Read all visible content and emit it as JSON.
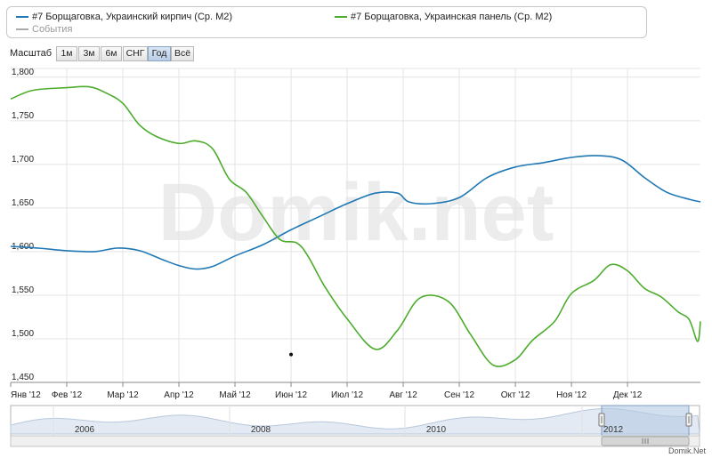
{
  "legend": {
    "series1_label": "#7 Борщаговка, Украинский кирпич (Ср. М2)",
    "series2_label": "#7 Борщаговка, Украинская панель (Ср. М2)",
    "events_label": "События"
  },
  "zoom": {
    "label": "Масштаб",
    "buttons": [
      "1м",
      "3м",
      "6м",
      "СНГ",
      "Год",
      "Всё"
    ],
    "active": "Год"
  },
  "colors": {
    "series1": "#1f78b4",
    "series2": "#4cac2c",
    "events": "#aaaaaa",
    "grid": "#e4e4e4"
  },
  "watermark": "Domik.net",
  "footer": "Domik.Net",
  "navigator": {
    "years": [
      "2006",
      "2008",
      "2010",
      "2012"
    ]
  },
  "chart_data": {
    "type": "line",
    "x_ticks": [
      "Янв '12",
      "Фев '12",
      "Мар '12",
      "Апр '12",
      "Май '12",
      "Июн '12",
      "Июл '12",
      "Авг '12",
      "Сен '12",
      "Окт '12",
      "Ноя '12",
      "Дек '12"
    ],
    "y_ticks": [
      "1,800",
      "1,750",
      "1,700",
      "1,650",
      "1,600",
      "1,550",
      "1,500",
      "1,450"
    ],
    "ylim": [
      1450,
      1810
    ],
    "xlim": [
      0,
      12.3
    ],
    "grid": true,
    "legend_position": "top",
    "series": [
      {
        "name": "#7 Борщаговка, Украинский кирпич (Ср. М2)",
        "color": "#1f78b4",
        "points": [
          [
            0,
            1606
          ],
          [
            0.5,
            1604
          ],
          [
            1,
            1601
          ],
          [
            1.5,
            1600
          ],
          [
            1.9,
            1604
          ],
          [
            2.3,
            1601
          ],
          [
            2.7,
            1591
          ],
          [
            3,
            1584
          ],
          [
            3.3,
            1580
          ],
          [
            3.6,
            1583
          ],
          [
            4,
            1595
          ],
          [
            4.5,
            1608
          ],
          [
            5,
            1625
          ],
          [
            5.5,
            1640
          ],
          [
            6,
            1655
          ],
          [
            6.5,
            1667
          ],
          [
            6.9,
            1667
          ],
          [
            7.1,
            1657
          ],
          [
            7.5,
            1655
          ],
          [
            8,
            1662
          ],
          [
            8.5,
            1685
          ],
          [
            9,
            1697
          ],
          [
            9.5,
            1702
          ],
          [
            10,
            1708
          ],
          [
            10.5,
            1710
          ],
          [
            10.9,
            1705
          ],
          [
            11.3,
            1685
          ],
          [
            11.7,
            1668
          ],
          [
            12.1,
            1660
          ],
          [
            12.3,
            1657
          ]
        ]
      },
      {
        "name": "#7 Борщаговка, Украинская панель (Ср. М2)",
        "color": "#4cac2c",
        "points": [
          [
            0,
            1775
          ],
          [
            0.4,
            1785
          ],
          [
            1,
            1788
          ],
          [
            1.4,
            1789
          ],
          [
            1.7,
            1782
          ],
          [
            2,
            1770
          ],
          [
            2.3,
            1745
          ],
          [
            2.6,
            1732
          ],
          [
            3,
            1724
          ],
          [
            3.3,
            1727
          ],
          [
            3.6,
            1718
          ],
          [
            3.9,
            1683
          ],
          [
            4.2,
            1668
          ],
          [
            4.5,
            1640
          ],
          [
            4.8,
            1614
          ],
          [
            5.1,
            1610
          ],
          [
            5.3,
            1595
          ],
          [
            5.6,
            1560
          ],
          [
            6,
            1523
          ],
          [
            6.5,
            1488
          ],
          [
            6.9,
            1510
          ],
          [
            7.3,
            1547
          ],
          [
            7.8,
            1543
          ],
          [
            8.2,
            1505
          ],
          [
            8.6,
            1470
          ],
          [
            9,
            1476
          ],
          [
            9.3,
            1498
          ],
          [
            9.7,
            1520
          ],
          [
            10,
            1552
          ],
          [
            10.4,
            1567
          ],
          [
            10.7,
            1585
          ],
          [
            11,
            1578
          ],
          [
            11.3,
            1558
          ],
          [
            11.6,
            1548
          ],
          [
            11.9,
            1531
          ],
          [
            12.1,
            1522
          ],
          [
            12.25,
            1497
          ],
          [
            12.3,
            1520
          ]
        ]
      },
      {
        "name": "События",
        "color": "#aaaaaa",
        "points": []
      }
    ],
    "event_marker": {
      "x": 5.0,
      "y": 1482
    }
  }
}
